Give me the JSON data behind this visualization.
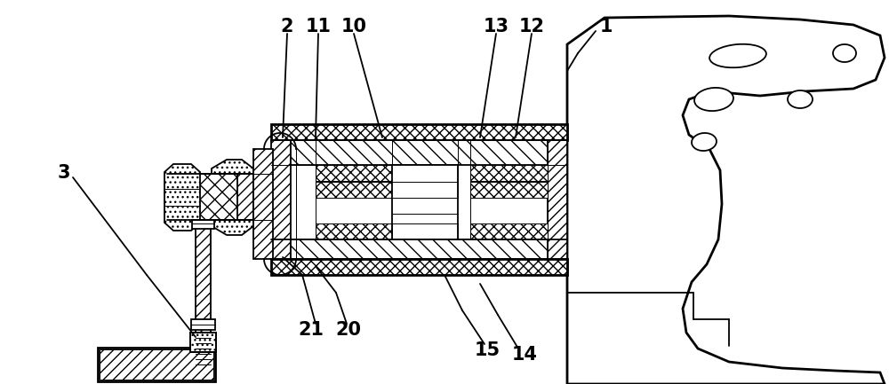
{
  "bg_color": "#ffffff",
  "line_color": "#000000",
  "fig_width": 10.0,
  "fig_height": 4.33,
  "dpi": 100,
  "lw_main": 1.3,
  "lw_thick": 2.0,
  "lw_thin": 0.7
}
